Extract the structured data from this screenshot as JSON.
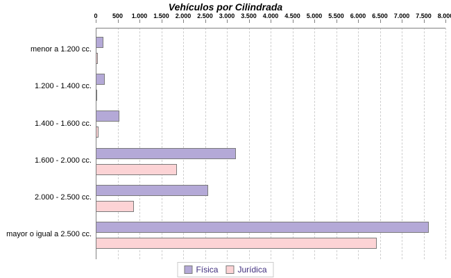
{
  "title": "Vehículos por Cilindrada",
  "chart_data": {
    "type": "bar",
    "orientation": "horizontal",
    "title": "Vehículos por Cilindrada",
    "categories": [
      "menor a 1.200 cc.",
      "1.200 - 1.400 cc.",
      "1.400 - 1.600 cc.",
      "1.600 - 2.000 cc.",
      "2.000 - 2.500 cc.",
      "mayor o igual a 2.500 cc."
    ],
    "series": [
      {
        "name": "Física",
        "color": "#b4a9d7",
        "values": [
          170,
          205,
          535,
          3200,
          2575,
          7625
        ]
      },
      {
        "name": "Jurídica",
        "color": "#fcd3d5",
        "values": [
          55,
          10,
          70,
          1860,
          880,
          6425
        ]
      }
    ],
    "xlim": [
      0,
      8000
    ],
    "x_tick_step": 500,
    "x_tick_labels": [
      "0",
      "500",
      "1.000",
      "1.500",
      "2.000",
      "2.500",
      "3.000",
      "3.500",
      "4.000",
      "4.500",
      "5.000",
      "5.500",
      "6.000",
      "6.500",
      "7.000",
      "7.500",
      "8.000"
    ],
    "xlabel": "",
    "ylabel": "",
    "grid": "vertical-dashed",
    "legend_position": "bottom",
    "legend_entries": [
      "Física",
      "Jurídica"
    ]
  },
  "colors": {
    "bar_border": "#7a7a7a",
    "axis": "#808080",
    "gridline": "#cfcfcf",
    "legend_text": "#3f2e7e",
    "background": "#ffffff"
  }
}
